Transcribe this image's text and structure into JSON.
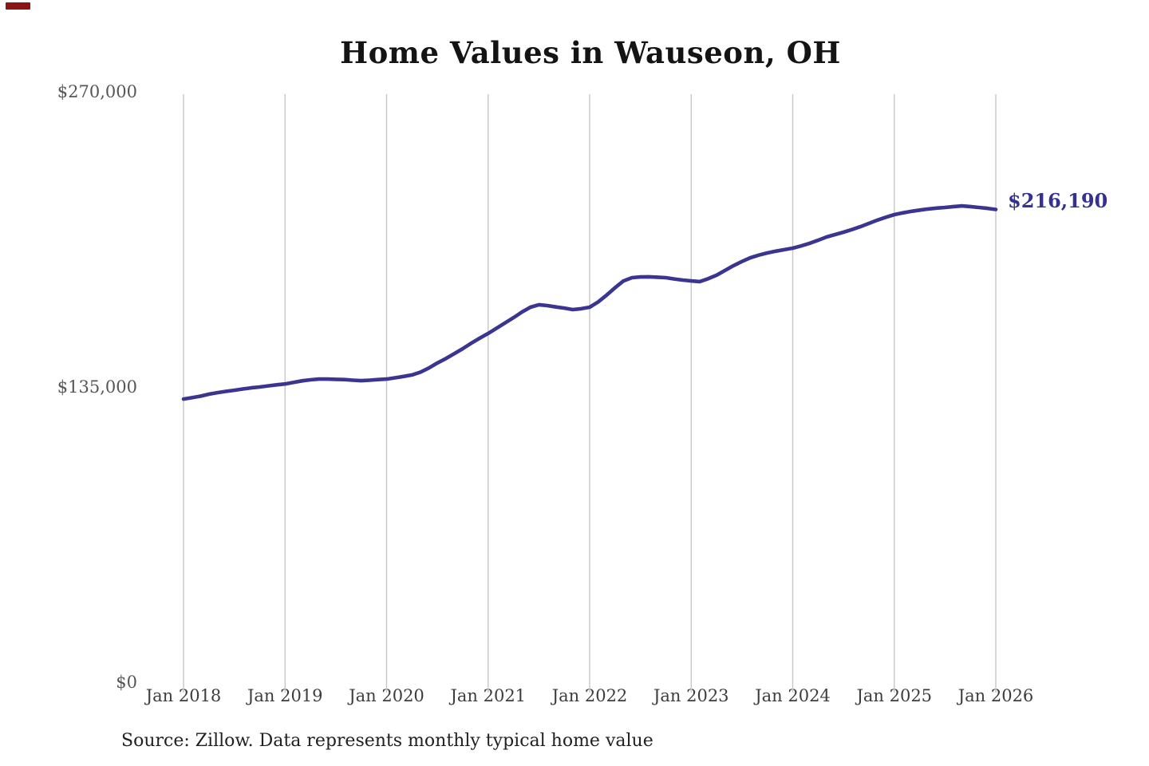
{
  "chart_data": {
    "type": "line",
    "title": "Home Values in Wauseon, OH",
    "xlabel": "",
    "ylabel": "",
    "ylim": [
      0,
      270000
    ],
    "y_ticks": [
      0,
      135000,
      270000
    ],
    "y_tick_labels": [
      "$0",
      "$135,000",
      "$270,000"
    ],
    "x_tick_labels": [
      "Jan 2018",
      "Jan 2019",
      "Jan 2020",
      "Jan 2021",
      "Jan 2022",
      "Jan 2023",
      "Jan 2024",
      "Jan 2025",
      "Jan 2026"
    ],
    "grid": "vertical-only",
    "legend_position": "none",
    "line_color": "#3a3591",
    "gridline_color": "#c7c7c7",
    "end_value_label": "$216,190",
    "series": [
      {
        "name": "Monthly typical home value",
        "start": "Jan 2018",
        "end": "Jan 2026",
        "frequency": "monthly",
        "values": [
          129500,
          130100,
          130800,
          131700,
          132400,
          133000,
          133500,
          134100,
          134600,
          135000,
          135500,
          136000,
          136400,
          137100,
          137800,
          138300,
          138600,
          138600,
          138500,
          138400,
          138100,
          137900,
          138100,
          138400,
          138600,
          139200,
          139800,
          140500,
          141800,
          143700,
          146000,
          148000,
          150200,
          152500,
          155000,
          157300,
          159500,
          161900,
          164300,
          166700,
          169300,
          171500,
          172600,
          172200,
          171600,
          171100,
          170400,
          170800,
          171500,
          173900,
          177000,
          180400,
          183500,
          185000,
          185300,
          185400,
          185200,
          185000,
          184400,
          183900,
          183500,
          183200,
          184500,
          186100,
          188300,
          190500,
          192400,
          194100,
          195300,
          196300,
          197100,
          197800,
          198500,
          199500,
          200700,
          202100,
          203600,
          204700,
          205800,
          207000,
          208300,
          209800,
          211300,
          212600,
          213800,
          214600,
          215300,
          215900,
          216400,
          216800,
          217100,
          217500,
          217800,
          217500,
          217100,
          216700,
          216190
        ]
      }
    ],
    "source_note": "Source: Zillow. Data represents monthly typical home value"
  }
}
